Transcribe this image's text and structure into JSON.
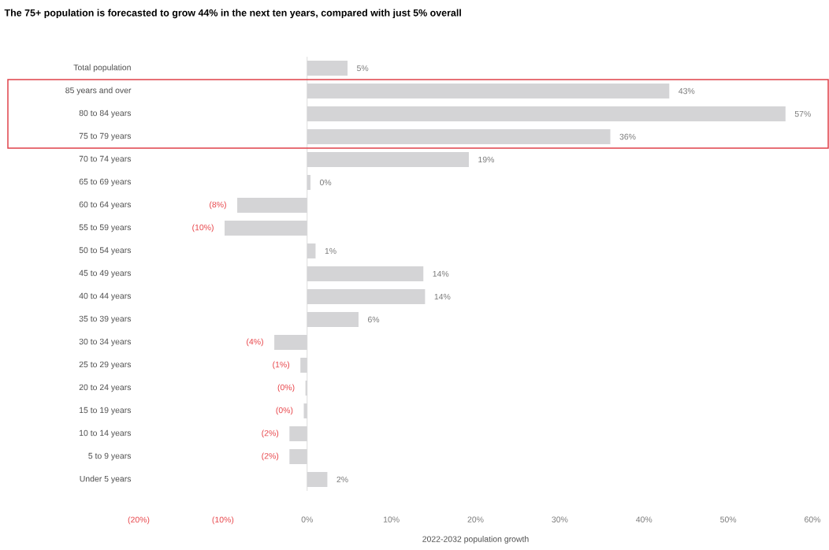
{
  "chart_data": {
    "type": "bar",
    "orientation": "horizontal",
    "title": "The 75+ population is forecasted to grow 44% in the next ten years, compared with just 5% overall",
    "xlabel": "2022-2032 population growth",
    "categories": [
      "Total population",
      "85 years and over",
      "80 to 84 years",
      "75 to 79 years",
      "70 to 74 years",
      "65 to 69 years",
      "60 to 64 years",
      "55 to 59 years",
      "50 to 54 years",
      "45 to 49 years",
      "40 to 44 years",
      "35 to 39 years",
      "30 to 34 years",
      "25 to 29 years",
      "20 to 24 years",
      "15 to 19 years",
      "10 to 14 years",
      "5 to 9 years",
      "Under 5 years"
    ],
    "values": [
      4.8,
      43,
      56.8,
      36,
      19.2,
      0.4,
      -8.3,
      -9.8,
      1,
      13.8,
      14,
      6.1,
      -3.9,
      -0.8,
      -0.2,
      -0.4,
      -2.1,
      -2.1,
      2.4
    ],
    "value_labels": [
      "5%",
      "43%",
      "57%",
      "36%",
      "19%",
      "0%",
      "(8%)",
      "(10%)",
      "1%",
      "14%",
      "14%",
      "6%",
      "(4%)",
      "(1%)",
      "(0%)",
      "(0%)",
      "(2%)",
      "(2%)",
      "2%"
    ],
    "color": "#d4d4d6",
    "xlim": [
      -20,
      60
    ],
    "xticks": [
      {
        "value": -20,
        "label": "(20%)"
      },
      {
        "value": -10,
        "label": "(10%)"
      },
      {
        "value": 0,
        "label": "0%"
      },
      {
        "value": 10,
        "label": "10%"
      },
      {
        "value": 20,
        "label": "20%"
      },
      {
        "value": 30,
        "label": "30%"
      },
      {
        "value": 40,
        "label": "40%"
      },
      {
        "value": 50,
        "label": "50%"
      },
      {
        "value": 60,
        "label": "60%"
      }
    ],
    "ref_lines": [
      {
        "axis": "x",
        "value": 0,
        "color": "#dcdcdc"
      }
    ],
    "grid": false
  }
}
